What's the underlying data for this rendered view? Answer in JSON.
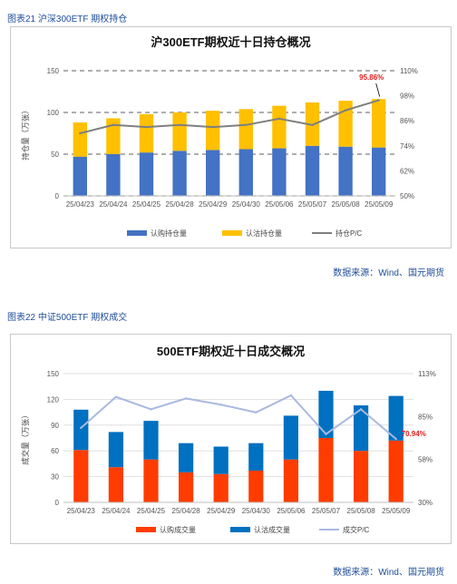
{
  "fig1": {
    "label": "图表21 沪深300ETF 期权持仓",
    "source": "数据来源：Wind、国元期货"
  },
  "fig2": {
    "label": "图表22 中证500ETF 期权成交",
    "source": "数据来源：Wind、国元期货"
  },
  "chart_data": [
    {
      "type": "bar",
      "stacked": true,
      "title": "沪300ETF期权近十日持仓概况",
      "ylabel": "持仓量（万张）",
      "categories": [
        "25/04/23",
        "25/04/24",
        "25/04/25",
        "25/04/28",
        "25/04/29",
        "25/04/30",
        "25/05/06",
        "25/05/07",
        "25/05/08",
        "25/05/09"
      ],
      "ylim": [
        0,
        150
      ],
      "yticks": [
        "0",
        "50",
        "100",
        "150"
      ],
      "y2lim": [
        0.5,
        1.1
      ],
      "y2ticks": [
        "50%",
        "62%",
        "74%",
        "86%",
        "98%",
        "110%"
      ],
      "series": [
        {
          "name": "认购持仓量",
          "kind": "bar",
          "color": "#4472c4",
          "values": [
            47,
            50,
            52,
            54,
            55,
            56,
            57,
            60,
            59,
            58
          ]
        },
        {
          "name": "认沽持仓量",
          "kind": "bar",
          "color": "#ffc000",
          "values": [
            41,
            43,
            46,
            46,
            47,
            48,
            51,
            52,
            55,
            58
          ]
        },
        {
          "name": "持仓P/C",
          "kind": "line",
          "axis": "right",
          "color": "#7f7f7f",
          "values": [
            0.8,
            0.84,
            0.83,
            0.84,
            0.83,
            0.84,
            0.87,
            0.84,
            0.91,
            0.9586
          ]
        }
      ],
      "annotation": {
        "text": "95.86%",
        "index": 9
      },
      "grid": "dashed",
      "legend": "bottom"
    },
    {
      "type": "bar",
      "stacked": true,
      "title": "500ETF期权近十日成交概况",
      "ylabel": "成交量（万张）",
      "categories": [
        "25/04/23",
        "25/04/24",
        "25/04/25",
        "25/04/28",
        "25/04/29",
        "25/04/30",
        "25/05/06",
        "25/05/07",
        "25/05/08",
        "25/05/09"
      ],
      "ylim": [
        0,
        150
      ],
      "yticks": [
        "0",
        "30",
        "60",
        "90",
        "120",
        "150"
      ],
      "y2lim": [
        0.3,
        1.13
      ],
      "y2ticks": [
        "30%",
        "58%",
        "85%",
        "113%"
      ],
      "series": [
        {
          "name": "认购成交量",
          "kind": "bar",
          "color": "#ff3c00",
          "values": [
            61,
            41,
            50,
            35,
            33,
            37,
            50,
            75,
            60,
            72
          ]
        },
        {
          "name": "认沽成交量",
          "kind": "bar",
          "color": "#0070c0",
          "values": [
            47,
            41,
            45,
            34,
            32,
            32,
            51,
            55,
            53,
            52
          ]
        },
        {
          "name": "成交P/C",
          "kind": "line",
          "axis": "right",
          "color": "#a9b9e0",
          "values": [
            0.78,
            0.98,
            0.9,
            0.97,
            0.93,
            0.88,
            0.99,
            0.74,
            0.9,
            0.7094
          ]
        }
      ],
      "annotation": {
        "text": "70.94%",
        "index": 9
      },
      "grid": "horizontal",
      "legend": "bottom"
    }
  ]
}
